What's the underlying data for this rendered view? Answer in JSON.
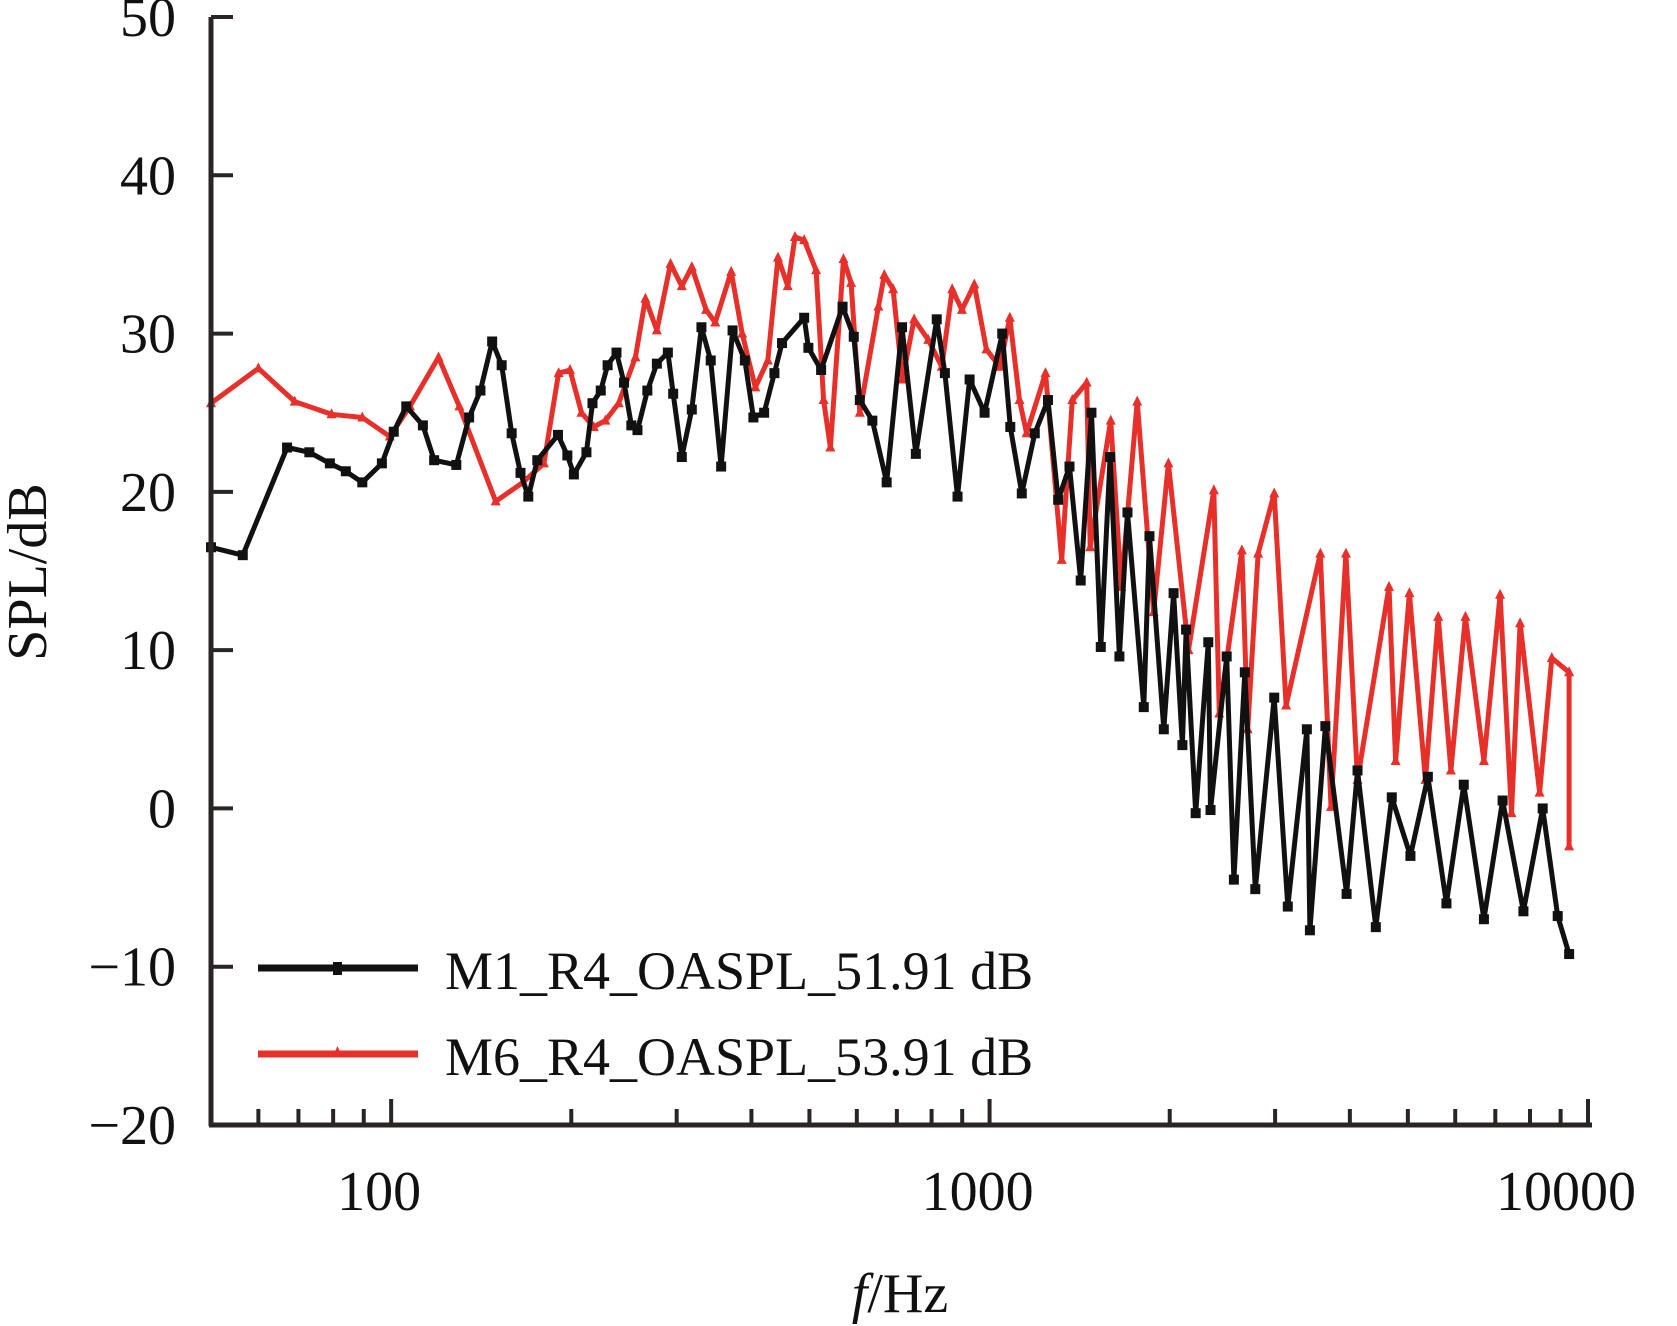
{
  "chart_data": {
    "type": "line",
    "title": "",
    "xlabel_italic": "f",
    "xlabel_rest": "/Hz",
    "xlabel": "f/Hz",
    "ylabel": "SPL/dB",
    "xscale": "log",
    "xlim": [
      50,
      10000
    ],
    "ylim": [
      -20,
      50
    ],
    "x_ticks": [
      100,
      1000,
      10000
    ],
    "x_tick_labels": [
      "100",
      "1000",
      "10000"
    ],
    "y_ticks": [
      50,
      40,
      30,
      20,
      10,
      0,
      -10,
      -20
    ],
    "y_tick_labels": [
      "50",
      "40",
      "30",
      "20",
      "10",
      "0",
      "−10",
      "−20"
    ],
    "grid": false,
    "legend_position": "bottom-left",
    "series": [
      {
        "name": "M1_R4_OASPL_51.91 dB",
        "color": "#111111",
        "marker": "square",
        "points": [
          [
            50,
            16.5
          ],
          [
            56.5,
            16.0
          ],
          [
            67,
            22.8
          ],
          [
            73,
            22.5
          ],
          [
            79,
            21.8
          ],
          [
            84,
            21.3
          ],
          [
            89.5,
            20.6
          ],
          [
            96.5,
            21.8
          ],
          [
            101,
            23.8
          ],
          [
            106,
            25.4
          ],
          [
            113,
            24.2
          ],
          [
            118,
            22.0
          ],
          [
            128.5,
            21.7
          ],
          [
            135,
            24.7
          ],
          [
            141,
            26.4
          ],
          [
            147.5,
            29.5
          ],
          [
            153,
            28.0
          ],
          [
            159,
            23.7
          ],
          [
            164.5,
            21.2
          ],
          [
            169.5,
            19.7
          ],
          [
            175.5,
            22.0
          ],
          [
            190,
            23.6
          ],
          [
            197,
            22.3
          ],
          [
            202,
            21.1
          ],
          [
            212,
            22.5
          ],
          [
            217,
            25.6
          ],
          [
            224,
            26.4
          ],
          [
            230,
            28.0
          ],
          [
            238,
            28.8
          ],
          [
            245,
            26.9
          ],
          [
            252,
            24.2
          ],
          [
            258,
            23.9
          ],
          [
            268,
            26.4
          ],
          [
            278,
            28.1
          ],
          [
            290,
            28.8
          ],
          [
            296,
            26.2
          ],
          [
            306,
            22.2
          ],
          [
            318,
            25.2
          ],
          [
            330,
            30.4
          ],
          [
            342,
            28.3
          ],
          [
            356,
            21.6
          ],
          [
            372,
            30.2
          ],
          [
            390,
            28.3
          ],
          [
            403,
            24.7
          ],
          [
            420,
            25.0
          ],
          [
            437,
            27.5
          ],
          [
            450,
            29.4
          ],
          [
            490,
            31.0
          ],
          [
            498,
            29.1
          ],
          [
            523,
            27.7
          ],
          [
            568,
            31.7
          ],
          [
            593,
            29.8
          ],
          [
            607,
            25.8
          ],
          [
            637,
            24.5
          ],
          [
            673,
            20.6
          ],
          [
            714,
            30.4
          ],
          [
            753,
            22.4
          ],
          [
            816,
            30.9
          ],
          [
            842,
            27.5
          ],
          [
            884,
            19.7
          ],
          [
            926,
            27.1
          ],
          [
            981,
            25.0
          ],
          [
            1050,
            30.0
          ],
          [
            1083,
            24.1
          ],
          [
            1132,
            19.9
          ],
          [
            1190,
            23.7
          ],
          [
            1252,
            25.8
          ],
          [
            1302,
            19.5
          ],
          [
            1360,
            21.6
          ],
          [
            1420,
            14.4
          ],
          [
            1480,
            25.0
          ],
          [
            1534,
            10.2
          ],
          [
            1590,
            22.2
          ],
          [
            1648,
            9.6
          ],
          [
            1700,
            18.7
          ],
          [
            1810,
            6.4
          ],
          [
            1850,
            17.2
          ],
          [
            1955,
            5.0
          ],
          [
            2030,
            13.6
          ],
          [
            2100,
            4.0
          ],
          [
            2130,
            11.3
          ],
          [
            2210,
            -0.3
          ],
          [
            2320,
            10.5
          ],
          [
            2340,
            -0.1
          ],
          [
            2490,
            9.6
          ],
          [
            2560,
            -4.5
          ],
          [
            2670,
            8.6
          ],
          [
            2780,
            -5.1
          ],
          [
            2990,
            7.0
          ],
          [
            3150,
            -6.2
          ],
          [
            3390,
            5.0
          ],
          [
            3430,
            -7.7
          ],
          [
            3640,
            5.2
          ],
          [
            3950,
            -5.4
          ],
          [
            4120,
            2.4
          ],
          [
            4420,
            -7.5
          ],
          [
            4700,
            0.7
          ],
          [
            5050,
            -3.0
          ],
          [
            5400,
            2.0
          ],
          [
            5800,
            -6.0
          ],
          [
            6200,
            1.5
          ],
          [
            6700,
            -7.0
          ],
          [
            7200,
            0.5
          ],
          [
            7800,
            -6.5
          ],
          [
            8400,
            0.0
          ],
          [
            8900,
            -6.8
          ],
          [
            9300,
            -9.2
          ]
        ]
      },
      {
        "name": "M6_R4_OASPL_53.91 dB",
        "color": "#e8302b",
        "marker": "triangle",
        "points": [
          [
            50,
            25.6
          ],
          [
            60,
            27.8
          ],
          [
            69,
            25.7
          ],
          [
            79.5,
            24.9
          ],
          [
            89.5,
            24.7
          ],
          [
            99.5,
            23.5
          ],
          [
            107.5,
            25.4
          ],
          [
            120,
            28.5
          ],
          [
            130,
            25.4
          ],
          [
            149.5,
            19.4
          ],
          [
            166,
            20.6
          ],
          [
            180,
            21.8
          ],
          [
            190.5,
            27.5
          ],
          [
            199,
            27.7
          ],
          [
            208,
            25.0
          ],
          [
            218,
            24.1
          ],
          [
            228,
            24.5
          ],
          [
            240,
            25.6
          ],
          [
            256,
            28.5
          ],
          [
            266,
            32.2
          ],
          [
            278,
            30.2
          ],
          [
            293,
            34.4
          ],
          [
            306,
            33.0
          ],
          [
            318,
            34.2
          ],
          [
            336,
            31.5
          ],
          [
            348,
            30.7
          ],
          [
            370,
            33.9
          ],
          [
            386,
            30.0
          ],
          [
            406,
            26.6
          ],
          [
            426,
            28.3
          ],
          [
            443,
            34.8
          ],
          [
            460,
            33.0
          ],
          [
            473,
            36.1
          ],
          [
            490,
            35.9
          ],
          [
            513,
            34.0
          ],
          [
            528,
            25.8
          ],
          [
            542,
            22.8
          ],
          [
            570,
            34.7
          ],
          [
            587,
            33.2
          ],
          [
            607,
            25.0
          ],
          [
            652,
            31.7
          ],
          [
            667,
            33.7
          ],
          [
            690,
            32.8
          ],
          [
            715,
            27.1
          ],
          [
            748,
            30.9
          ],
          [
            790,
            29.6
          ],
          [
            832,
            27.9
          ],
          [
            866,
            32.8
          ],
          [
            899,
            31.5
          ],
          [
            943,
            33.1
          ],
          [
            988,
            29.0
          ],
          [
            1040,
            27.9
          ],
          [
            1081,
            31.0
          ],
          [
            1122,
            25.8
          ],
          [
            1153,
            23.7
          ],
          [
            1240,
            27.5
          ],
          [
            1320,
            15.7
          ],
          [
            1375,
            25.8
          ],
          [
            1453,
            26.9
          ],
          [
            1473,
            16.5
          ],
          [
            1594,
            24.5
          ],
          [
            1660,
            14.0
          ],
          [
            1765,
            25.7
          ],
          [
            1880,
            12.4
          ],
          [
            1990,
            21.8
          ],
          [
            2150,
            10.0
          ],
          [
            2370,
            20.1
          ],
          [
            2420,
            6.0
          ],
          [
            2640,
            16.3
          ],
          [
            2700,
            5.0
          ],
          [
            2810,
            16.1
          ],
          [
            2990,
            19.9
          ],
          [
            3130,
            6.5
          ],
          [
            3570,
            16.1
          ],
          [
            3720,
            0.1
          ],
          [
            3940,
            16.1
          ],
          [
            4120,
            1.8
          ],
          [
            4650,
            14.0
          ],
          [
            4770,
            3.0
          ],
          [
            5030,
            13.6
          ],
          [
            5350,
            1.8
          ],
          [
            5620,
            12.1
          ],
          [
            5900,
            2.4
          ],
          [
            6240,
            12.1
          ],
          [
            6700,
            3.0
          ],
          [
            7130,
            13.5
          ],
          [
            7450,
            -0.3
          ],
          [
            7700,
            11.7
          ],
          [
            8300,
            1.0
          ],
          [
            8700,
            9.5
          ],
          [
            9300,
            8.6
          ],
          [
            9300,
            -2.4
          ]
        ]
      }
    ]
  }
}
